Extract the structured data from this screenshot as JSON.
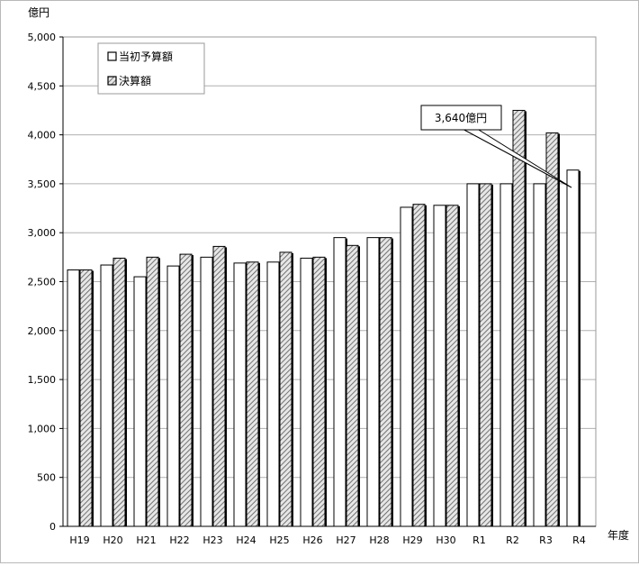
{
  "chart_data": {
    "type": "bar",
    "ylabel": "億円",
    "xlabel": "年度",
    "ylim": [
      0,
      5000
    ],
    "yticks": [
      0,
      500,
      1000,
      1500,
      2000,
      2500,
      3000,
      3500,
      4000,
      4500,
      5000
    ],
    "ytick_labels": [
      "0",
      "500",
      "1,000",
      "1,500",
      "2,000",
      "2,500",
      "3,000",
      "3,500",
      "4,000",
      "4,500",
      "5,000"
    ],
    "grid": true,
    "legend_position": "top-left",
    "categories": [
      "H19",
      "H20",
      "H21",
      "H22",
      "H23",
      "H24",
      "H25",
      "H26",
      "H27",
      "H28",
      "H29",
      "H30",
      "R1",
      "R2",
      "R3",
      "R4"
    ],
    "series": [
      {
        "name": "当初予算額",
        "fill": "#ffffff",
        "pattern": "none",
        "values": [
          2620,
          2670,
          2550,
          2660,
          2750,
          2690,
          2700,
          2740,
          2950,
          2950,
          3260,
          3280,
          3500,
          3500,
          3500,
          3640
        ]
      },
      {
        "name": "決算額",
        "fill": "#d9d9d9",
        "pattern": "diagonal-hatch",
        "values": [
          2620,
          2740,
          2750,
          2780,
          2860,
          2700,
          2800,
          2750,
          2870,
          2950,
          3290,
          3280,
          3500,
          4250,
          4020,
          null
        ]
      }
    ],
    "annotation": {
      "text": "3,640億円",
      "target_category": "R4",
      "target_value": 3640
    }
  }
}
